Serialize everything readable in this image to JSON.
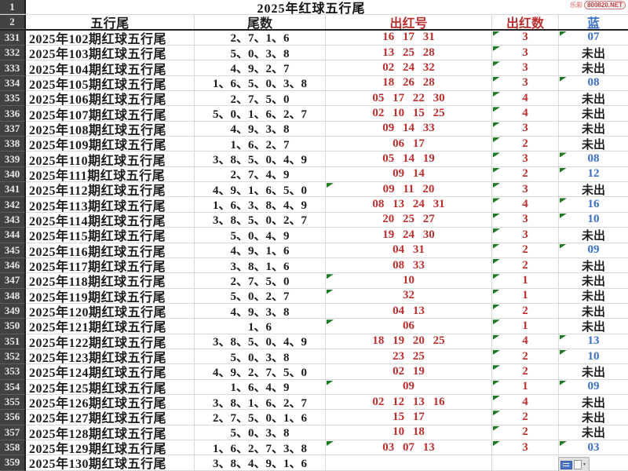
{
  "title": "2025年红球五行尾",
  "watermark": {
    "prefix": "乐彩",
    "site": "800820.NET"
  },
  "row_headers": {
    "r1": "1",
    "r2": "2"
  },
  "columns": {
    "wuxingwei": "五行尾",
    "weishu": "尾数",
    "chuhonghao": "出红号",
    "chuhongshu": "出红数",
    "lan": "蓝"
  },
  "colors": {
    "red_text": "#bb2f2f",
    "blue_text": "#3a6fc4",
    "flag_green": "#1f7a24",
    "row_header_bg": "#424242",
    "gridline": "#d5dcd5"
  },
  "icons": {
    "paste_options": "paste-options-icon",
    "flag": "green-corner-flag"
  },
  "table": {
    "rows": [
      {
        "n": "331",
        "label": "2025年102期红球五行尾",
        "tails": "2、7、1、6",
        "reds": "16 17 31",
        "count": "3",
        "blue": "07",
        "blue_num": true,
        "tri_reds": false
      },
      {
        "n": "332",
        "label": "2025年103期红球五行尾",
        "tails": "5、0、3、8",
        "reds": "13 25 28",
        "count": "3",
        "blue": "未出",
        "blue_num": false,
        "tri_reds": false
      },
      {
        "n": "333",
        "label": "2025年104期红球五行尾",
        "tails": "4、9、2、7",
        "reds": "02 24 32",
        "count": "3",
        "blue": "未出",
        "blue_num": false,
        "tri_reds": false
      },
      {
        "n": "334",
        "label": "2025年105期红球五行尾",
        "tails": "1、6、5、0、3、8",
        "reds": "18 26 28",
        "count": "3",
        "blue": "08",
        "blue_num": true,
        "tri_reds": false
      },
      {
        "n": "335",
        "label": "2025年106期红球五行尾",
        "tails": "2、7、5、0",
        "reds": "05 17 22 30",
        "count": "4",
        "blue": "未出",
        "blue_num": false,
        "tri_reds": false
      },
      {
        "n": "336",
        "label": "2025年107期红球五行尾",
        "tails": "5、0、1、6、2、7",
        "reds": "02 10 15 25",
        "count": "4",
        "blue": "未出",
        "blue_num": false,
        "tri_reds": false
      },
      {
        "n": "337",
        "label": "2025年108期红球五行尾",
        "tails": "4、9、3、8",
        "reds": "09 14 33",
        "count": "3",
        "blue": "未出",
        "blue_num": false,
        "tri_reds": false
      },
      {
        "n": "338",
        "label": "2025年109期红球五行尾",
        "tails": "1、6、2、7",
        "reds": "06 17",
        "count": "2",
        "blue": "未出",
        "blue_num": false,
        "tri_reds": false
      },
      {
        "n": "339",
        "label": "2025年110期红球五行尾",
        "tails": "3、8、5、0、4、9",
        "reds": "05 14 19",
        "count": "3",
        "blue": "08",
        "blue_num": true,
        "tri_reds": false
      },
      {
        "n": "340",
        "label": "2025年111期红球五行尾",
        "tails": "2、7、4、9",
        "reds": "09 14",
        "count": "2",
        "blue": "12",
        "blue_num": true,
        "tri_reds": false
      },
      {
        "n": "341",
        "label": "2025年112期红球五行尾",
        "tails": "4、9、1、6、5、0",
        "reds": "09 11 20",
        "count": "3",
        "blue": "未出",
        "blue_num": false,
        "tri_reds": true
      },
      {
        "n": "342",
        "label": "2025年113期红球五行尾",
        "tails": "1、6、3、8、4、9",
        "reds": "08 13 24 31",
        "count": "4",
        "blue": "16",
        "blue_num": true,
        "tri_reds": false
      },
      {
        "n": "343",
        "label": "2025年114期红球五行尾",
        "tails": "3、8、5、0、2、7",
        "reds": "20 25 27",
        "count": "3",
        "blue": "10",
        "blue_num": true,
        "tri_reds": false
      },
      {
        "n": "344",
        "label": "2025年115期红球五行尾",
        "tails": "5、0、4、9",
        "reds": "19 24 30",
        "count": "3",
        "blue": "未出",
        "blue_num": false,
        "tri_reds": false
      },
      {
        "n": "345",
        "label": "2025年116期红球五行尾",
        "tails": "4、9、1、6",
        "reds": "04 31",
        "count": "2",
        "blue": "09",
        "blue_num": true,
        "tri_reds": false
      },
      {
        "n": "346",
        "label": "2025年117期红球五行尾",
        "tails": "3、8、1、6",
        "reds": "08 33",
        "count": "2",
        "blue": "未出",
        "blue_num": false,
        "tri_reds": false
      },
      {
        "n": "347",
        "label": "2025年118期红球五行尾",
        "tails": "2、7、5、0",
        "reds": "10",
        "count": "1",
        "blue": "未出",
        "blue_num": false,
        "tri_reds": true
      },
      {
        "n": "348",
        "label": "2025年119期红球五行尾",
        "tails": "5、0、2、7",
        "reds": "32",
        "count": "1",
        "blue": "未出",
        "blue_num": false,
        "tri_reds": true
      },
      {
        "n": "349",
        "label": "2025年120期红球五行尾",
        "tails": "4、9、3、8",
        "reds": "04 13",
        "count": "2",
        "blue": "未出",
        "blue_num": false,
        "tri_reds": false
      },
      {
        "n": "350",
        "label": "2025年121期红球五行尾",
        "tails": "1、6",
        "reds": "06",
        "count": "1",
        "blue": "未出",
        "blue_num": false,
        "tri_reds": true
      },
      {
        "n": "351",
        "label": "2025年122期红球五行尾",
        "tails": "3、8、5、0、4、9",
        "reds": "18 19 20 25",
        "count": "4",
        "blue": "13",
        "blue_num": true,
        "tri_reds": false
      },
      {
        "n": "352",
        "label": "2025年123期红球五行尾",
        "tails": "5、0、3、8",
        "reds": "23 25",
        "count": "2",
        "blue": "10",
        "blue_num": true,
        "tri_reds": false
      },
      {
        "n": "353",
        "label": "2025年124期红球五行尾",
        "tails": "4、9、2、7、5、0",
        "reds": "02 19",
        "count": "2",
        "blue": "未出",
        "blue_num": false,
        "tri_reds": false
      },
      {
        "n": "354",
        "label": "2025年125期红球五行尾",
        "tails": "1、6、4、9",
        "reds": "09",
        "count": "1",
        "blue": "09",
        "blue_num": true,
        "tri_reds": true
      },
      {
        "n": "355",
        "label": "2025年126期红球五行尾",
        "tails": "3、8、1、6、2、7",
        "reds": "02 12 13 16",
        "count": "4",
        "blue": "未出",
        "blue_num": false,
        "tri_reds": false
      },
      {
        "n": "356",
        "label": "2025年127期红球五行尾",
        "tails": "2、7、5、0、1、6",
        "reds": "15 17",
        "count": "2",
        "blue": "未出",
        "blue_num": false,
        "tri_reds": false
      },
      {
        "n": "357",
        "label": "2025年128期红球五行尾",
        "tails": "5、0、3、8",
        "reds": "10 18",
        "count": "2",
        "blue": "未出",
        "blue_num": false,
        "tri_reds": false
      },
      {
        "n": "358",
        "label": "2025年129期红球五行尾",
        "tails": "1、6、2、7、3、8",
        "reds": "03 07 13",
        "count": "3",
        "blue": "03",
        "blue_num": true,
        "tri_reds": true
      },
      {
        "n": "359",
        "label": "2025年130期红球五行尾",
        "tails": "3、8、4、9、1、6",
        "reds": "",
        "count": "",
        "blue": "",
        "blue_num": false,
        "tri_reds": false
      }
    ]
  }
}
